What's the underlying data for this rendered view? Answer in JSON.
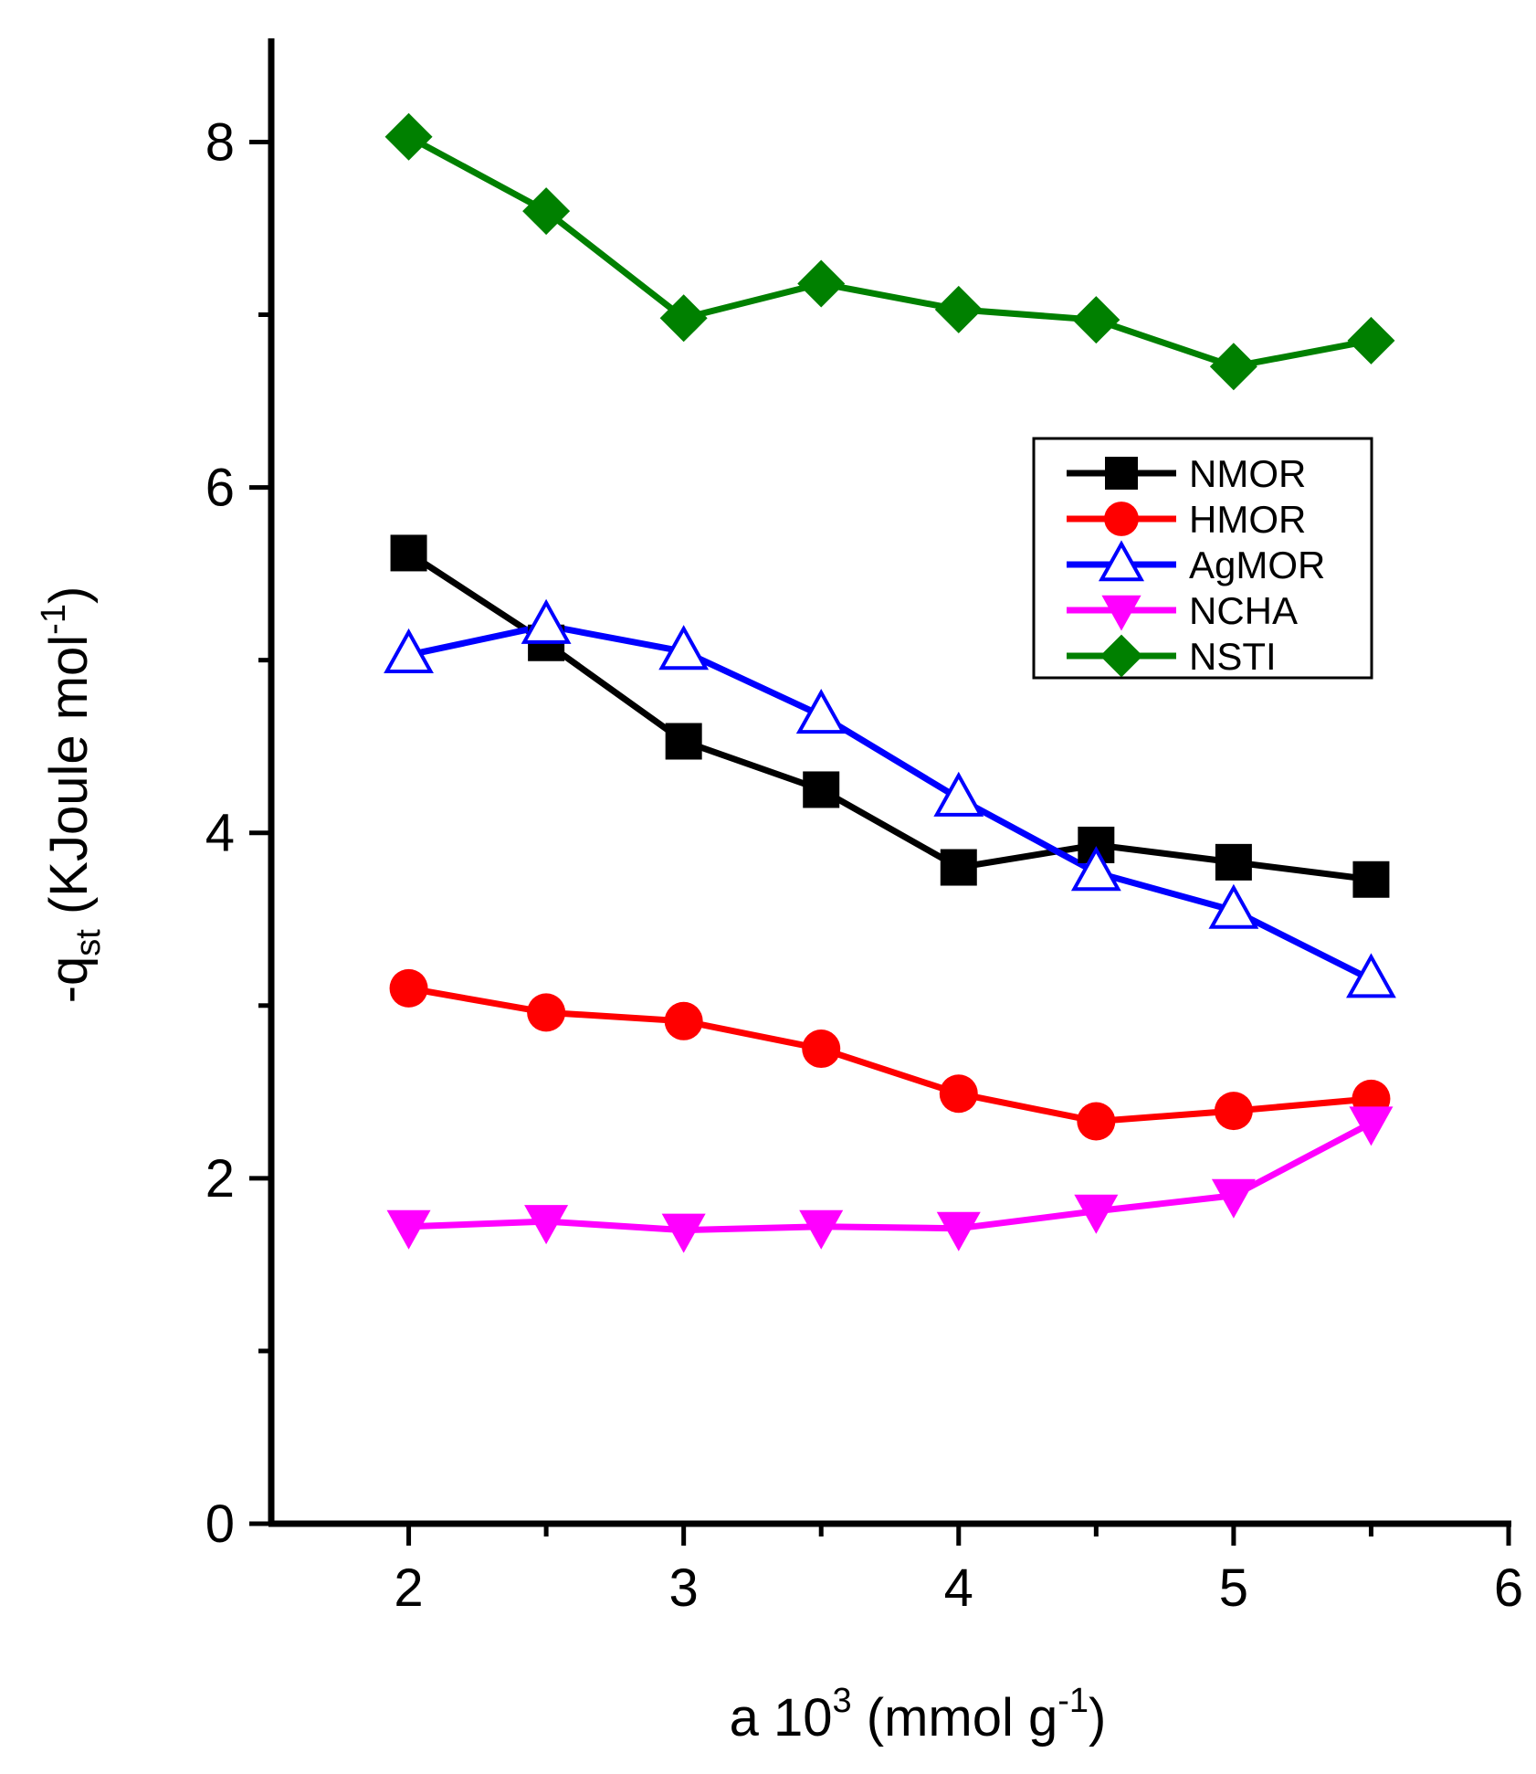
{
  "chart_data": {
    "type": "line",
    "title": "",
    "xlabel": {
      "main": "a 10",
      "sup1": "3",
      "mid": " (mmol g",
      "sup2": "-1",
      "end": ")"
    },
    "ylabel": {
      "main": "-q",
      "sub": "st",
      "mid": " (KJoule mol",
      "sup": "-1",
      "end": ")"
    },
    "xlim": [
      1.5,
      6
    ],
    "ylim": [
      0,
      8.6
    ],
    "xticks": [
      2,
      3,
      4,
      5,
      6
    ],
    "yticks": [
      0,
      2,
      4,
      6,
      8
    ],
    "x": [
      2,
      2.5,
      3,
      3.5,
      4,
      4.5,
      5,
      5.5
    ],
    "legend_position": "upper-right",
    "series": [
      {
        "name": "NMOR",
        "marker": "square",
        "color": "#000000",
        "values": [
          5.62,
          5.1,
          4.53,
          4.25,
          3.8,
          3.93,
          3.83,
          3.73
        ]
      },
      {
        "name": "HMOR",
        "marker": "circle",
        "color": "#ff0000",
        "values": [
          3.1,
          2.96,
          2.91,
          2.75,
          2.49,
          2.33,
          2.39,
          2.46
        ]
      },
      {
        "name": "AgMOR",
        "marker": "triangle-open",
        "color": "#0000ff",
        "values": [
          5.03,
          5.2,
          5.05,
          4.68,
          4.2,
          3.77,
          3.55,
          3.15
        ]
      },
      {
        "name": "NCHA",
        "marker": "triangle-down",
        "color": "#ff00ff",
        "values": [
          1.72,
          1.75,
          1.7,
          1.72,
          1.71,
          1.81,
          1.9,
          2.32
        ]
      },
      {
        "name": "NSTI",
        "marker": "diamond",
        "color": "#008000",
        "values": [
          8.03,
          7.6,
          6.98,
          7.18,
          7.03,
          6.97,
          6.7,
          6.85
        ]
      }
    ]
  }
}
